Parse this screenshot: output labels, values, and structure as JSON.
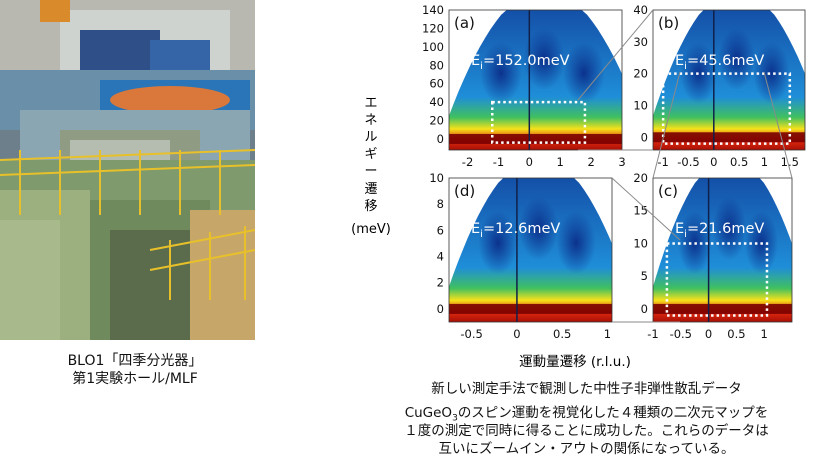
{
  "photo": {
    "caption_line1": "BLO1「四季分光器」",
    "caption_line2": "第1実験ホール/MLF"
  },
  "figure": {
    "ylabel_chars": [
      "エ",
      "ネ",
      "ル",
      "ギ",
      "ー",
      "遷",
      "移"
    ],
    "ylabel_unit": "(meV)",
    "xlabel": "運動量遷移 (r.l.u.)",
    "title": "新しい測定手法で観測した中性子非弾性散乱データ",
    "description_line1_prefix": "CuGeO",
    "description_line1_sub": "3",
    "description_line1_suffix": "のスピン運動を視覚化した４種類の二次元マップを",
    "description_line2": "１度の測定で同時に得ることに成功した。これらのデータは",
    "description_line3": "互いにズームイン・アウトの関係になっている。"
  },
  "chart_data": [
    {
      "type": "heatmap",
      "panel": "(a)",
      "annotation": "Ei=152.0meV",
      "xlim": [
        -2.6,
        3.0
      ],
      "ylim": [
        -12,
        140
      ],
      "xticks": [
        -2,
        -1,
        0,
        1,
        2,
        3
      ],
      "yticks": [
        0,
        20,
        40,
        60,
        80,
        100,
        120,
        140
      ]
    },
    {
      "type": "heatmap",
      "panel": "(b)",
      "annotation": "Ei=45.6meV",
      "xlim": [
        -1.2,
        1.8
      ],
      "ylim": [
        -4,
        40
      ],
      "xticks": [
        -1,
        -0.5,
        0,
        0.5,
        1,
        1.5
      ],
      "yticks": [
        0,
        10,
        20,
        30,
        40
      ]
    },
    {
      "type": "heatmap",
      "panel": "(c)",
      "annotation": "Ei=21.6meV",
      "xlim": [
        -1.0,
        1.5
      ],
      "ylim": [
        -2,
        20
      ],
      "xticks": [
        -1,
        -0.5,
        0,
        0.5,
        1
      ],
      "yticks": [
        0,
        5,
        10,
        15,
        20
      ]
    },
    {
      "type": "heatmap",
      "panel": "(d)",
      "annotation": "Ei=12.6meV",
      "xlim": [
        -0.75,
        1.05
      ],
      "ylim": [
        -1,
        10
      ],
      "xticks": [
        -0.5,
        0,
        0.5,
        1
      ],
      "yticks": [
        0,
        2,
        4,
        6,
        8,
        10
      ]
    }
  ]
}
